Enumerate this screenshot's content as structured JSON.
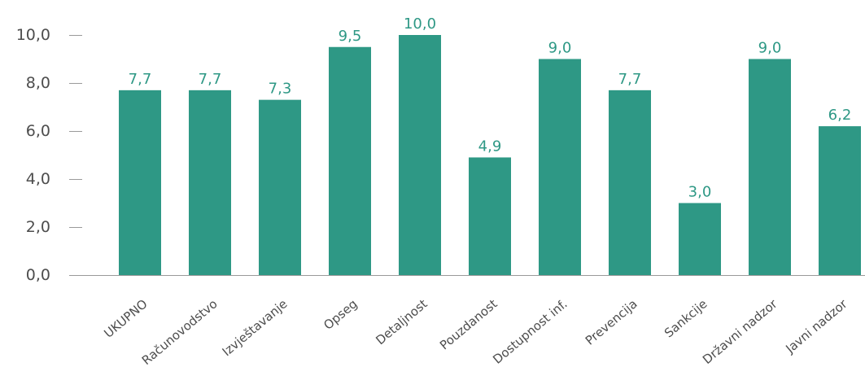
{
  "chart_data": {
    "type": "bar",
    "categories": [
      "UKUPNO",
      "Računovodstvo",
      "Izvještavanje",
      "Opseg",
      "Detaljnost",
      "Pouzdanost",
      "Dostupnost inf.",
      "Prevencija",
      "Sankcije",
      "Državni nadzor",
      "Javni nadzor"
    ],
    "values": [
      7.7,
      7.7,
      7.3,
      9.5,
      10.0,
      4.9,
      9.0,
      7.7,
      3.0,
      9.0,
      6.2
    ],
    "value_labels": [
      "7,7",
      "7,7",
      "7,3",
      "9,5",
      "10,0",
      "4,9",
      "9,0",
      "7,7",
      "3,0",
      "9,0",
      "6,2"
    ],
    "y_ticks": [
      0,
      2,
      4,
      6,
      8,
      10
    ],
    "y_tick_labels": [
      "0,0",
      "2,0",
      "4,0",
      "6,0",
      "8,0",
      "10,0"
    ],
    "ylim": [
      0,
      10
    ],
    "title": "",
    "xlabel": "",
    "ylabel": "",
    "grid": false,
    "legend": "none",
    "colors": {
      "bar": "#2e9885",
      "data_label": "#2e9885",
      "axis": "#9a9a9a",
      "tick_text": "#4d4d4d"
    }
  }
}
